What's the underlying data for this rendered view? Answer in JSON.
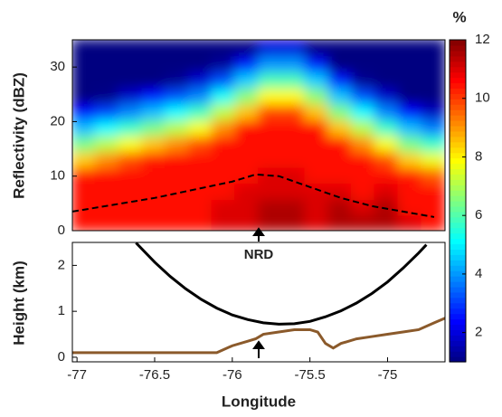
{
  "chart_data": [
    {
      "type": "heatmap",
      "ylabel": "Reflectivity (dBZ)",
      "xlim": [
        -77.03,
        -74.63
      ],
      "ylim": [
        0,
        35
      ],
      "yticks": [
        0,
        10,
        20,
        30
      ],
      "clim": [
        1,
        12
      ],
      "cticks": [
        2,
        4,
        6,
        8,
        10,
        12
      ],
      "clabel": "%",
      "z": [
        [
          10.5,
          10.5,
          10.5,
          10.5,
          10.5,
          10.5,
          11,
          11,
          11.5,
          11.5,
          11,
          11.5,
          11.5,
          11.5,
          11,
          10.5
        ],
        [
          10.5,
          10.5,
          10.5,
          10.5,
          10.5,
          10.5,
          11,
          11,
          11.5,
          11.5,
          11,
          11.5,
          11,
          11.5,
          10.5,
          10.5
        ],
        [
          10.5,
          10.5,
          10.5,
          10.5,
          10.5,
          10.5,
          10.5,
          11,
          11,
          11,
          11,
          11,
          10.5,
          11,
          10.5,
          10.5
        ],
        [
          10.4,
          10.5,
          10.5,
          10.5,
          10.5,
          10.5,
          10.5,
          10.5,
          11,
          11,
          10.5,
          10.5,
          10.5,
          10.5,
          10.4,
          9.7
        ],
        [
          8.4,
          9.1,
          9.8,
          10.4,
          10.5,
          10.5,
          10.5,
          10.5,
          10.5,
          10.5,
          10.5,
          10.5,
          10.5,
          9.8,
          8.4,
          7.7
        ],
        [
          6.4,
          7.1,
          7.8,
          8.5,
          9.1,
          9.8,
          10.5,
          10.5,
          10.5,
          10.5,
          10.5,
          10.5,
          9.1,
          7.8,
          6.4,
          5.7
        ],
        [
          4.4,
          5.1,
          5.7,
          6.4,
          7.1,
          7.8,
          9.1,
          10.5,
          10.5,
          10.5,
          10.5,
          8.5,
          7.1,
          5.7,
          4.4,
          3.7
        ],
        [
          2.4,
          3.1,
          3.8,
          4.4,
          5.1,
          5.8,
          7.2,
          8.5,
          9.9,
          9.9,
          8.5,
          6.5,
          5.1,
          3.8,
          2.4,
          1.7
        ],
        [
          1,
          1.1,
          1.8,
          2.5,
          3.2,
          3.8,
          5.2,
          6.6,
          7.9,
          7.9,
          6.6,
          4.5,
          3.2,
          1.8,
          1,
          1
        ],
        [
          1,
          1,
          1,
          1,
          1.2,
          1.9,
          3.2,
          4.6,
          5.9,
          5.9,
          4.6,
          2.6,
          1.2,
          1,
          1,
          1
        ],
        [
          1,
          1,
          1,
          1,
          1,
          1,
          1.3,
          2.6,
          4.0,
          4.0,
          2.6,
          1,
          1,
          1,
          1,
          1
        ],
        [
          1,
          1,
          1,
          1,
          1,
          1,
          1,
          1,
          2.0,
          2.0,
          1,
          1,
          1,
          1,
          1,
          1
        ]
      ],
      "series": [
        {
          "color": "#000000",
          "dashed": true,
          "x": [
            -77.03,
            -76.5,
            -76.0,
            -75.85,
            -75.7,
            -75.5,
            -75.3,
            -75.1,
            -74.9,
            -74.7
          ],
          "values": [
            3.5,
            6,
            9,
            10.3,
            10,
            8,
            6,
            4.5,
            3.5,
            2.5
          ]
        }
      ]
    },
    {
      "type": "line",
      "ylabel": "Height (km)",
      "xlabel": "Longitude",
      "xlim": [
        -77.03,
        -74.63
      ],
      "xticks": [
        -77,
        -76.5,
        -76,
        -75.5,
        -75
      ],
      "ylim": [
        -0.1,
        2.5
      ],
      "yticks": [
        0,
        1,
        2
      ],
      "annotation": {
        "text": "NRD",
        "x": -75.83
      },
      "series": [
        {
          "color": "#000000",
          "x": [
            -76.62,
            -76.5,
            -76.4,
            -76.3,
            -76.2,
            -76.1,
            -76.0,
            -75.9,
            -75.8,
            -75.7,
            -75.6,
            -75.5,
            -75.4,
            -75.3,
            -75.2,
            -75.1,
            -75.0,
            -74.9,
            -74.8,
            -74.75
          ],
          "values": [
            2.49,
            2.07,
            1.76,
            1.49,
            1.26,
            1.07,
            0.92,
            0.82,
            0.75,
            0.72,
            0.73,
            0.78,
            0.88,
            1.01,
            1.18,
            1.39,
            1.64,
            1.94,
            2.27,
            2.45
          ]
        },
        {
          "color": "#8b5a2b",
          "x": [
            -77.03,
            -76.5,
            -76.1,
            -76.0,
            -75.9,
            -75.85,
            -75.8,
            -75.7,
            -75.6,
            -75.5,
            -75.45,
            -75.4,
            -75.35,
            -75.3,
            -75.2,
            -75.1,
            -75.0,
            -74.9,
            -74.8,
            -74.7,
            -74.63
          ],
          "values": [
            0.1,
            0.1,
            0.1,
            0.25,
            0.35,
            0.4,
            0.5,
            0.55,
            0.6,
            0.6,
            0.55,
            0.3,
            0.2,
            0.3,
            0.4,
            0.45,
            0.5,
            0.55,
            0.6,
            0.75,
            0.85
          ]
        }
      ]
    }
  ]
}
